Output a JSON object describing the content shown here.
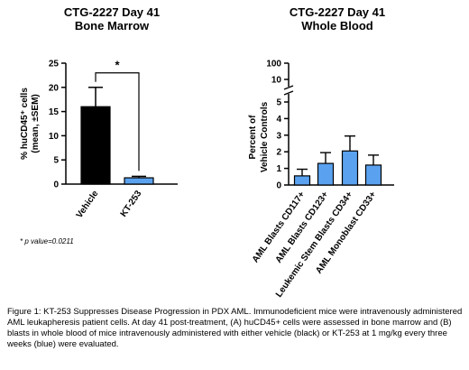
{
  "footnote": "* p value=0.0211",
  "caption": "Figure 1: KT-253 Suppresses Disease Progression in PDX AML. Immunodeficient mice were intravenously administered AML leukapheresis patient cells. At day 41 post-treatment, (A) huCD45+ cells were assessed in bone marrow and (B) blasts in whole blood of mice intravenously administered with either vehicle (black) or KT-253 at 1 mg/kg every three weeks (blue) were evaluated.",
  "chart_data": [
    {
      "type": "bar",
      "title": "CTG-2227 Day 41",
      "subtitle": "Bone Marrow",
      "ylabel": "% huCD45⁺ cells",
      "ylabel2": "(mean, ±SEM)",
      "categories": [
        "Vehicle",
        "KT-253"
      ],
      "values": [
        16,
        1.3
      ],
      "errors": [
        4,
        0.3
      ],
      "colors": [
        "#000000",
        "#5aa2f0"
      ],
      "ylim": [
        0,
        25
      ],
      "yticks": [
        0,
        5,
        10,
        15,
        20,
        25
      ],
      "significance": "*"
    },
    {
      "type": "bar",
      "title": "CTG-2227 Day 41",
      "subtitle": "Whole Blood",
      "ylabel": "Percent of",
      "ylabel2": "Vehicle Controls",
      "categories": [
        "AML Blasts CD117+",
        "AML Blasts CD123+",
        "Leukemic Stem Blasts CD34+",
        "AML Monoblast CD33+"
      ],
      "values": [
        0.55,
        1.3,
        2.05,
        1.2
      ],
      "errors": [
        0.4,
        0.65,
        0.9,
        0.6
      ],
      "colors": [
        "#5aa2f0",
        "#5aa2f0",
        "#5aa2f0",
        "#5aa2f0"
      ],
      "ylim": [
        0,
        100
      ],
      "axis_break": true,
      "yticks_lower": [
        0,
        1,
        2,
        3,
        4,
        5
      ],
      "yticks_upper": [
        10,
        100
      ]
    }
  ]
}
